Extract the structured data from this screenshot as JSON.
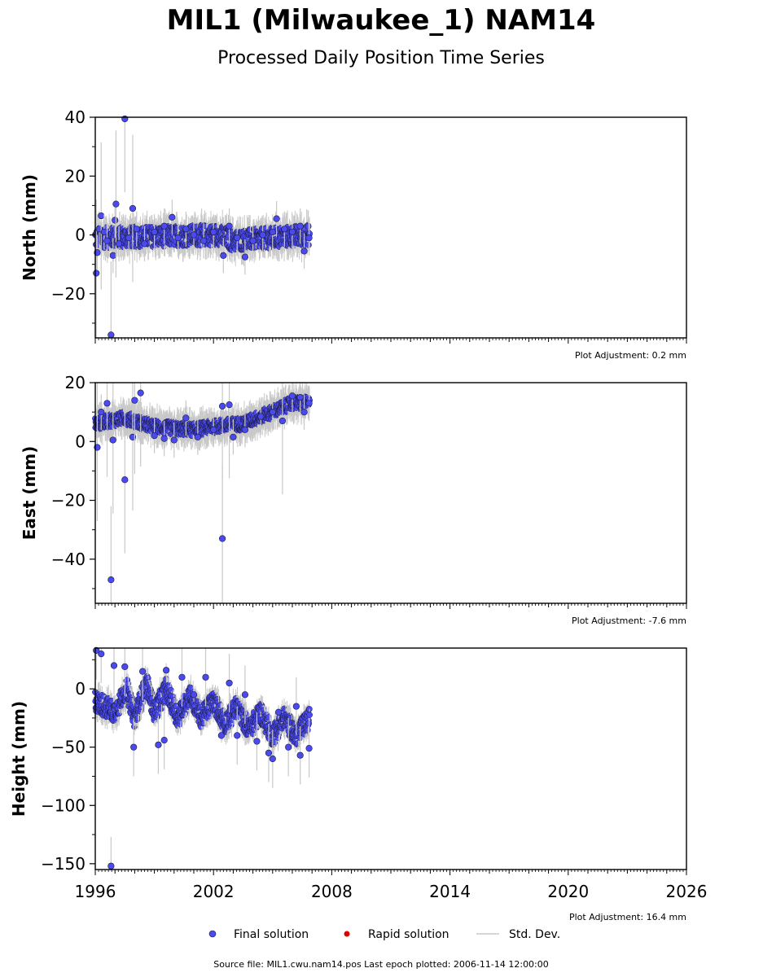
{
  "title": "MIL1 (Milwaukee_1) NAM14",
  "subtitle": "Processed Daily Position Time Series",
  "colors": {
    "final": "#4a4af0",
    "final_edge": "#1a1a3a",
    "rapid": "#dd0000",
    "stddev": "#c8c8c8",
    "axis": "#000000"
  },
  "legend": {
    "final": "Final solution",
    "rapid": "Rapid solution",
    "stddev": "Std. Dev."
  },
  "source": "Source file: MIL1.cwu.nam14.pos  Last epoch plotted: 2006-11-14 12:00:00",
  "chart_data": [
    {
      "type": "scatter",
      "ylabel": "North (mm)",
      "adjustment": "Plot Adjustment: 0.2 mm",
      "xlim": [
        1996,
        2026
      ],
      "ylim": [
        -35,
        40
      ],
      "yticks": [
        -20,
        0,
        20,
        40
      ],
      "x_ticks": [
        1996,
        2002,
        2008,
        2014,
        2020,
        2026
      ],
      "x_tick_labels_shown": false,
      "series": [
        {
          "name": "Final solution",
          "points": [
            [
              1996.05,
              -13
            ],
            [
              1996.1,
              -6
            ],
            [
              1996.2,
              2
            ],
            [
              1996.3,
              6.5
            ],
            [
              1996.45,
              1
            ],
            [
              1996.6,
              -2
            ],
            [
              1996.8,
              -34
            ],
            [
              1996.9,
              -7
            ],
            [
              1997.0,
              5
            ],
            [
              1997.05,
              10.5
            ],
            [
              1997.2,
              -3
            ],
            [
              1997.5,
              39.5
            ],
            [
              1997.7,
              -1
            ],
            [
              1997.9,
              9
            ],
            [
              1998.1,
              2
            ],
            [
              1998.5,
              -3
            ],
            [
              1999.0,
              1
            ],
            [
              1999.5,
              3
            ],
            [
              1999.9,
              6
            ],
            [
              2000.2,
              -1
            ],
            [
              2000.6,
              2
            ],
            [
              2001.0,
              0
            ],
            [
              2001.5,
              -2
            ],
            [
              2002.0,
              1
            ],
            [
              2002.5,
              -7
            ],
            [
              2002.8,
              3
            ],
            [
              2003.2,
              -1
            ],
            [
              2003.6,
              -7.5
            ],
            [
              2004.0,
              -2
            ],
            [
              2004.5,
              0
            ],
            [
              2005.0,
              1
            ],
            [
              2005.2,
              5.5
            ],
            [
              2005.6,
              2
            ],
            [
              2006.0,
              1
            ],
            [
              2006.4,
              3
            ],
            [
              2006.6,
              -5.5
            ],
            [
              2006.85,
              -1
            ]
          ],
          "trend": [
            [
              1996.0,
              -1
            ],
            [
              2002.3,
              0
            ],
            [
              2003.0,
              -2
            ],
            [
              2006.9,
              0
            ]
          ],
          "scatter": 3.5
        }
      ]
    },
    {
      "type": "scatter",
      "ylabel": "East (mm)",
      "adjustment": "Plot Adjustment: -7.6 mm",
      "xlim": [
        1996,
        2026
      ],
      "ylim": [
        -55,
        20
      ],
      "yticks": [
        -40,
        -20,
        0,
        20
      ],
      "x_ticks": [
        1996,
        2002,
        2008,
        2014,
        2020,
        2026
      ],
      "x_tick_labels_shown": false,
      "series": [
        {
          "name": "Final solution",
          "points": [
            [
              1996.1,
              -2
            ],
            [
              1996.3,
              10
            ],
            [
              1996.6,
              13
            ],
            [
              1996.8,
              -47
            ],
            [
              1996.9,
              0.5
            ],
            [
              1997.5,
              -13
            ],
            [
              1997.9,
              1.5
            ],
            [
              1998.0,
              14
            ],
            [
              1998.3,
              16.5
            ],
            [
              1999.0,
              2
            ],
            [
              1999.5,
              1
            ],
            [
              2000.0,
              0.5
            ],
            [
              2000.6,
              8
            ],
            [
              2001.2,
              1.5
            ],
            [
              2002.0,
              4
            ],
            [
              2002.45,
              12
            ],
            [
              2002.45,
              -33
            ],
            [
              2002.8,
              12.5
            ],
            [
              2003.0,
              1.5
            ],
            [
              2003.6,
              4
            ],
            [
              2004.4,
              8.5
            ],
            [
              2005.0,
              10
            ],
            [
              2005.5,
              7
            ],
            [
              2006.0,
              15.5
            ],
            [
              2006.4,
              15
            ],
            [
              2006.6,
              10
            ],
            [
              2006.85,
              13
            ]
          ],
          "trend": [
            [
              1996.0,
              6
            ],
            [
              1997.5,
              8
            ],
            [
              1999.0,
              5
            ],
            [
              2001.0,
              4
            ],
            [
              2002.5,
              5.5
            ],
            [
              2003.5,
              6
            ],
            [
              2005.0,
              10
            ],
            [
              2006.0,
              13
            ],
            [
              2006.9,
              13
            ]
          ],
          "scatter": 2.2
        }
      ]
    },
    {
      "type": "scatter",
      "ylabel": "Height (mm)",
      "adjustment": "Plot Adjustment: 16.4 mm",
      "xlim": [
        1996,
        2026
      ],
      "ylim": [
        -155,
        35
      ],
      "yticks": [
        -150,
        -100,
        -50,
        0
      ],
      "x_ticks": [
        1996,
        2002,
        2008,
        2014,
        2020,
        2026
      ],
      "x_tick_labels_shown": true,
      "series": [
        {
          "name": "Final solution",
          "points": [
            [
              1996.05,
              33
            ],
            [
              1996.3,
              30
            ],
            [
              1996.8,
              -152
            ],
            [
              1996.95,
              20
            ],
            [
              1997.5,
              19
            ],
            [
              1997.95,
              -50
            ],
            [
              1998.4,
              15
            ],
            [
              1999.2,
              -48
            ],
            [
              1999.6,
              16
            ],
            [
              1999.5,
              -44
            ],
            [
              2000.4,
              10
            ],
            [
              2001.0,
              -5
            ],
            [
              2001.6,
              10
            ],
            [
              2002.4,
              -40
            ],
            [
              2002.8,
              5
            ],
            [
              2003.2,
              -40
            ],
            [
              2003.6,
              -5
            ],
            [
              2004.2,
              -45
            ],
            [
              2004.8,
              -55
            ],
            [
              2005.0,
              -60
            ],
            [
              2005.3,
              -20
            ],
            [
              2005.8,
              -50
            ],
            [
              2006.2,
              -15
            ],
            [
              2006.4,
              -57
            ],
            [
              2006.85,
              -51
            ]
          ],
          "trend": [
            [
              1996.0,
              -10
            ],
            [
              1997.0,
              -20
            ],
            [
              1997.6,
              0
            ],
            [
              1998.0,
              -25
            ],
            [
              1998.6,
              5
            ],
            [
              1999.0,
              -20
            ],
            [
              1999.6,
              0
            ],
            [
              2000.2,
              -25
            ],
            [
              2000.8,
              -5
            ],
            [
              2001.4,
              -25
            ],
            [
              2002.0,
              -10
            ],
            [
              2002.6,
              -30
            ],
            [
              2003.2,
              -15
            ],
            [
              2003.8,
              -35
            ],
            [
              2004.4,
              -20
            ],
            [
              2005.0,
              -40
            ],
            [
              2005.6,
              -25
            ],
            [
              2006.2,
              -40
            ],
            [
              2006.9,
              -25
            ]
          ],
          "scatter": 9
        }
      ]
    }
  ]
}
